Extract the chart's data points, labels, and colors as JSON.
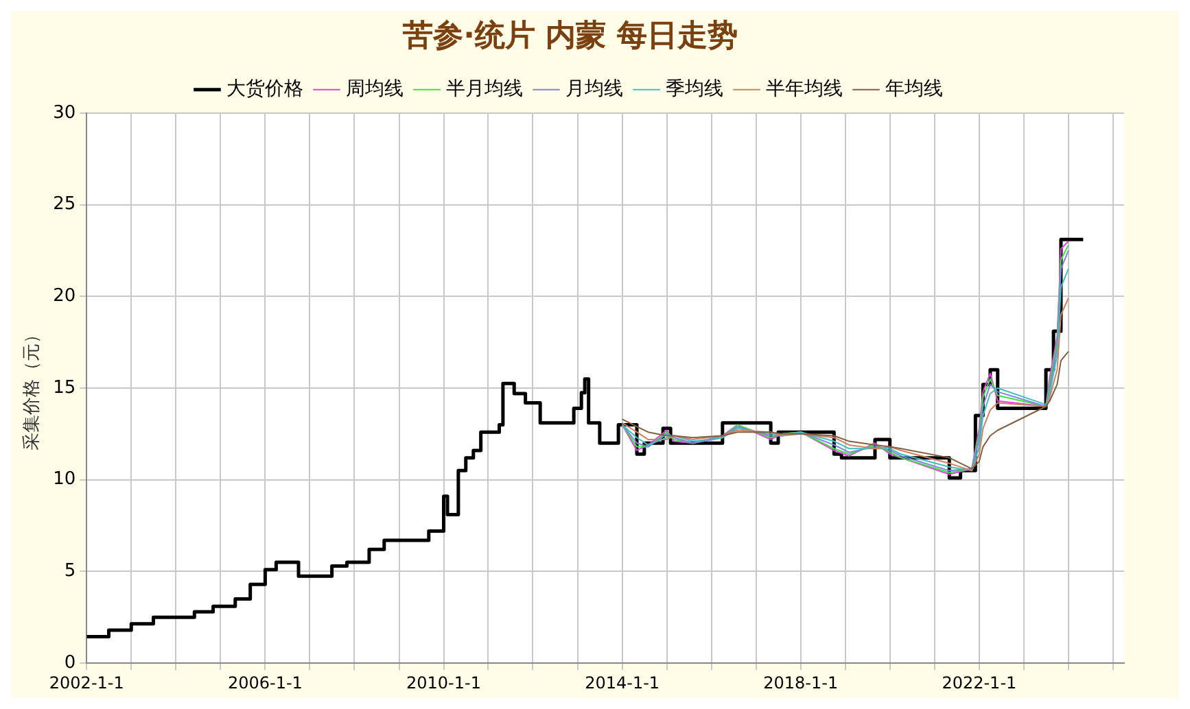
{
  "chart_data": {
    "type": "step",
    "title": "苦参·统片 内蒙 每日走势",
    "ylabel": "采集价格（元）",
    "xlim": [
      "2002-01-01",
      "2025-04-01"
    ],
    "xticks": [
      {
        "value": "2002-01-01",
        "label": "2002-1-1"
      },
      {
        "value": "2003-01-01",
        "label": null
      },
      {
        "value": "2004-01-01",
        "label": null
      },
      {
        "value": "2005-01-01",
        "label": null
      },
      {
        "value": "2006-01-01",
        "label": "2006-1-1"
      },
      {
        "value": "2007-01-01",
        "label": null
      },
      {
        "value": "2008-01-01",
        "label": null
      },
      {
        "value": "2009-01-01",
        "label": null
      },
      {
        "value": "2010-01-01",
        "label": "2010-1-1"
      },
      {
        "value": "2011-01-01",
        "label": null
      },
      {
        "value": "2012-01-01",
        "label": null
      },
      {
        "value": "2013-01-01",
        "label": null
      },
      {
        "value": "2014-01-01",
        "label": "2014-1-1"
      },
      {
        "value": "2015-01-01",
        "label": null
      },
      {
        "value": "2016-01-01",
        "label": null
      },
      {
        "value": "2017-01-01",
        "label": null
      },
      {
        "value": "2018-01-01",
        "label": "2018-1-1"
      },
      {
        "value": "2019-01-01",
        "label": null
      },
      {
        "value": "2020-01-01",
        "label": null
      },
      {
        "value": "2021-01-01",
        "label": null
      },
      {
        "value": "2022-01-01",
        "label": "2022-1-1"
      },
      {
        "value": "2023-01-01",
        "label": null
      },
      {
        "value": "2024-01-01",
        "label": null
      },
      {
        "value": "2025-01-01",
        "label": null
      }
    ],
    "ylim": [
      0,
      30
    ],
    "yticks": [
      0,
      5,
      10,
      15,
      20,
      25,
      30
    ],
    "grid": true,
    "legend": "top",
    "series": [
      {
        "name": "大货价格",
        "type": "step",
        "color": "#000000",
        "x": [
          "2002-01",
          "2002-07",
          "2003-01",
          "2003-07",
          "2004-06",
          "2004-11",
          "2005-05",
          "2005-09",
          "2006-01",
          "2006-04",
          "2006-10",
          "2007-07",
          "2007-11",
          "2008-05",
          "2008-09",
          "2009-09",
          "2010-01",
          "2010-02",
          "2010-05",
          "2010-07",
          "2010-09",
          "2010-11",
          "2011-04",
          "2011-05",
          "2011-08",
          "2011-11",
          "2012-03",
          "2012-12",
          "2013-02",
          "2013-03",
          "2013-04",
          "2013-07",
          "2013-12",
          "2014-05",
          "2014-07",
          "2014-12",
          "2015-02",
          "2016-04",
          "2017-05",
          "2017-07",
          "2018-10",
          "2018-12",
          "2019-09",
          "2020-01",
          "2021-05",
          "2021-08",
          "2021-12",
          "2022-02",
          "2022-04",
          "2022-06",
          "2023-07",
          "2023-09",
          "2023-11",
          "2024-05"
        ],
        "values": [
          1.45,
          1.8,
          2.15,
          2.5,
          2.8,
          3.1,
          3.5,
          4.3,
          5.1,
          5.5,
          4.75,
          5.3,
          5.5,
          6.2,
          6.7,
          7.2,
          9.1,
          8.1,
          10.5,
          11.2,
          11.6,
          12.6,
          13.0,
          15.25,
          14.7,
          14.2,
          13.1,
          13.9,
          14.75,
          15.5,
          13.1,
          12.0,
          13.0,
          11.4,
          12.0,
          12.8,
          12.0,
          13.1,
          12.0,
          12.6,
          11.4,
          11.2,
          12.2,
          11.2,
          10.1,
          10.5,
          13.5,
          15.2,
          16.0,
          13.9,
          16.0,
          18.1,
          23.1,
          23.1
        ]
      },
      {
        "name": "周均线",
        "type": "line",
        "color": "#e040e0",
        "x": [
          "2014-01",
          "2014-05",
          "2014-08",
          "2015-01",
          "2015-03",
          "2015-08",
          "2016-04",
          "2016-08",
          "2017-05",
          "2017-08",
          "2018-01",
          "2018-10",
          "2019-02",
          "2019-09",
          "2020-01",
          "2020-04",
          "2021-05",
          "2021-11",
          "2022-01",
          "2022-02",
          "2022-04",
          "2022-06",
          "2023-07",
          "2023-08",
          "2023-10",
          "2023-11",
          "2024-01"
        ],
        "values": [
          13.0,
          11.6,
          11.9,
          12.7,
          12.1,
          12.0,
          12.4,
          13.0,
          12.2,
          12.5,
          12.6,
          11.6,
          11.3,
          12.0,
          11.4,
          11.2,
          10.3,
          10.6,
          12.8,
          14.8,
          15.8,
          14.3,
          14.0,
          15.6,
          17.8,
          22.6,
          23.0
        ]
      },
      {
        "name": "半月均线",
        "type": "line",
        "color": "#40e040",
        "x": [
          "2014-01",
          "2014-05",
          "2014-08",
          "2015-01",
          "2015-03",
          "2015-08",
          "2016-04",
          "2016-08",
          "2017-05",
          "2017-08",
          "2018-01",
          "2018-10",
          "2019-02",
          "2019-09",
          "2020-01",
          "2020-04",
          "2021-05",
          "2021-11",
          "2022-01",
          "2022-02",
          "2022-04",
          "2022-06",
          "2023-07",
          "2023-08",
          "2023-10",
          "2023-11",
          "2024-01"
        ],
        "values": [
          13.0,
          11.8,
          11.8,
          12.6,
          12.2,
          12.0,
          12.3,
          13.0,
          12.3,
          12.5,
          12.6,
          11.7,
          11.4,
          11.9,
          11.5,
          11.2,
          10.4,
          10.6,
          12.5,
          14.5,
          15.5,
          14.6,
          14.0,
          15.3,
          17.5,
          22.0,
          22.8
        ]
      },
      {
        "name": "月均线",
        "type": "line",
        "color": "#8080e0",
        "x": [
          "2014-01",
          "2014-05",
          "2014-08",
          "2015-01",
          "2015-03",
          "2015-08",
          "2016-04",
          "2016-08",
          "2017-05",
          "2017-08",
          "2018-01",
          "2018-10",
          "2019-02",
          "2019-09",
          "2020-01",
          "2020-04",
          "2021-05",
          "2021-11",
          "2022-01",
          "2022-02",
          "2022-04",
          "2022-06",
          "2023-07",
          "2023-08",
          "2023-10",
          "2023-11",
          "2024-01"
        ],
        "values": [
          13.0,
          12.0,
          11.8,
          12.5,
          12.3,
          12.0,
          12.3,
          12.9,
          12.4,
          12.4,
          12.6,
          11.9,
          11.5,
          11.8,
          11.6,
          11.3,
          10.5,
          10.6,
          12.2,
          14.0,
          15.2,
          14.8,
          14.0,
          15.0,
          17.2,
          21.5,
          22.5
        ]
      },
      {
        "name": "季均线",
        "type": "line",
        "color": "#40c0c0",
        "x": [
          "2014-01",
          "2014-05",
          "2014-08",
          "2015-01",
          "2015-03",
          "2015-08",
          "2016-04",
          "2016-08",
          "2017-05",
          "2017-08",
          "2018-01",
          "2018-10",
          "2019-02",
          "2019-09",
          "2020-01",
          "2020-04",
          "2021-05",
          "2021-11",
          "2022-01",
          "2022-02",
          "2022-04",
          "2022-06",
          "2023-07",
          "2023-08",
          "2023-10",
          "2023-11",
          "2024-01"
        ],
        "values": [
          13.0,
          12.3,
          11.9,
          12.3,
          12.4,
          12.1,
          12.3,
          12.8,
          12.5,
          12.4,
          12.6,
          12.1,
          11.7,
          11.7,
          11.7,
          11.4,
          10.7,
          10.5,
          11.8,
          13.5,
          14.7,
          15.0,
          14.1,
          14.7,
          16.8,
          20.5,
          21.5
        ]
      },
      {
        "name": "半年均线",
        "type": "line",
        "color": "#d08060",
        "x": [
          "2014-01",
          "2014-05",
          "2014-08",
          "2015-01",
          "2015-03",
          "2015-08",
          "2016-04",
          "2016-08",
          "2017-05",
          "2017-08",
          "2018-01",
          "2018-10",
          "2019-02",
          "2019-09",
          "2020-01",
          "2020-04",
          "2021-05",
          "2021-11",
          "2022-01",
          "2022-02",
          "2022-04",
          "2022-06",
          "2023-07",
          "2023-08",
          "2023-10",
          "2023-11",
          "2024-01"
        ],
        "values": [
          13.1,
          12.6,
          12.2,
          12.2,
          12.4,
          12.2,
          12.4,
          12.7,
          12.6,
          12.4,
          12.5,
          12.3,
          11.9,
          11.7,
          11.8,
          11.6,
          10.9,
          10.5,
          11.4,
          12.8,
          13.8,
          14.2,
          14.0,
          14.5,
          16.0,
          19.0,
          19.9
        ]
      },
      {
        "name": "年均线",
        "type": "line",
        "color": "#806040",
        "x": [
          "2014-01",
          "2014-05",
          "2014-08",
          "2015-01",
          "2015-03",
          "2015-08",
          "2016-04",
          "2016-08",
          "2017-05",
          "2017-08",
          "2018-01",
          "2018-10",
          "2019-02",
          "2019-09",
          "2020-01",
          "2020-04",
          "2021-05",
          "2021-11",
          "2022-01",
          "2022-02",
          "2022-04",
          "2022-06",
          "2023-07",
          "2023-08",
          "2023-10",
          "2023-11",
          "2024-01"
        ],
        "values": [
          13.3,
          12.9,
          12.6,
          12.4,
          12.4,
          12.3,
          12.4,
          12.6,
          12.6,
          12.5,
          12.5,
          12.4,
          12.1,
          11.9,
          11.8,
          11.7,
          11.2,
          10.6,
          11.0,
          11.8,
          12.4,
          12.7,
          14.0,
          14.3,
          15.2,
          16.5,
          17.0
        ]
      }
    ]
  }
}
